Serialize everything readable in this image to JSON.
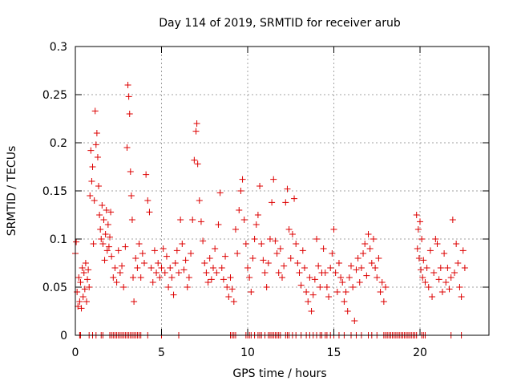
{
  "chart_data": {
    "type": "scatter",
    "title": "Day 114 of 2019, SRMTID for receiver arub",
    "xlabel": "GPS time / hours",
    "ylabel": "SRMTID / TECUs",
    "xlim": [
      0,
      24
    ],
    "ylim": [
      0,
      0.3
    ],
    "x_ticks": [
      0,
      5,
      10,
      15,
      20
    ],
    "x_tick_labels": [
      "0",
      "5",
      "10",
      "15",
      "20"
    ],
    "y_ticks": [
      0,
      0.05,
      0.1,
      0.15,
      0.2,
      0.25,
      0.3
    ],
    "y_tick_labels": [
      "0",
      "0.05",
      "0.1",
      "0.15",
      "0.2",
      "0.25",
      "0.3"
    ],
    "grid": true,
    "marker": "+",
    "marker_color": "#dd0000",
    "series": [
      {
        "name": "SRMTID",
        "points": [
          [
            0.0,
            0.085
          ],
          [
            0.05,
            0.097
          ],
          [
            0.1,
            0.045
          ],
          [
            0.15,
            0.03
          ],
          [
            0.2,
            0.06
          ],
          [
            0.25,
            0.035
          ],
          [
            0.3,
            0.055
          ],
          [
            0.35,
            0.028
          ],
          [
            0.4,
            0.07
          ],
          [
            0.45,
            0.04
          ],
          [
            0.5,
            0.065
          ],
          [
            0.55,
            0.048
          ],
          [
            0.6,
            0.075
          ],
          [
            0.65,
            0.035
          ],
          [
            0.7,
            0.058
          ],
          [
            0.75,
            0.068
          ],
          [
            0.8,
            0.05
          ],
          [
            0.85,
            0.145
          ],
          [
            0.9,
            0.192
          ],
          [
            0.95,
            0.16
          ],
          [
            1.0,
            0.175
          ],
          [
            1.05,
            0.095
          ],
          [
            1.1,
            0.14
          ],
          [
            1.15,
            0.233
          ],
          [
            1.2,
            0.198
          ],
          [
            1.25,
            0.21
          ],
          [
            1.3,
            0.185
          ],
          [
            1.35,
            0.155
          ],
          [
            1.4,
            0.125
          ],
          [
            1.45,
            0.11
          ],
          [
            1.5,
            0.1
          ],
          [
            1.55,
            0.135
          ],
          [
            1.6,
            0.095
          ],
          [
            1.65,
            0.12
          ],
          [
            1.7,
            0.078
          ],
          [
            1.75,
            0.105
          ],
          [
            1.8,
            0.13
          ],
          [
            1.85,
            0.088
          ],
          [
            1.9,
            0.115
          ],
          [
            1.95,
            0.092
          ],
          [
            2.0,
            0.102
          ],
          [
            2.05,
            0.128
          ],
          [
            2.1,
            0.082
          ],
          [
            2.2,
            0.06
          ],
          [
            2.3,
            0.07
          ],
          [
            2.4,
            0.055
          ],
          [
            2.5,
            0.088
          ],
          [
            2.6,
            0.065
          ],
          [
            2.7,
            0.072
          ],
          [
            2.8,
            0.05
          ],
          [
            2.9,
            0.092
          ],
          [
            3.0,
            0.195
          ],
          [
            3.05,
            0.26
          ],
          [
            3.1,
            0.248
          ],
          [
            3.15,
            0.23
          ],
          [
            3.2,
            0.17
          ],
          [
            3.25,
            0.145
          ],
          [
            3.3,
            0.12
          ],
          [
            3.35,
            0.06
          ],
          [
            3.4,
            0.035
          ],
          [
            3.5,
            0.08
          ],
          [
            3.6,
            0.07
          ],
          [
            3.7,
            0.095
          ],
          [
            3.8,
            0.06
          ],
          [
            3.9,
            0.085
          ],
          [
            4.0,
            0.075
          ],
          [
            4.1,
            0.167
          ],
          [
            4.2,
            0.14
          ],
          [
            4.3,
            0.128
          ],
          [
            4.4,
            0.07
          ],
          [
            4.5,
            0.055
          ],
          [
            4.6,
            0.088
          ],
          [
            4.7,
            0.065
          ],
          [
            4.8,
            0.075
          ],
          [
            4.9,
            0.06
          ],
          [
            5.0,
            0.07
          ],
          [
            5.1,
            0.09
          ],
          [
            5.2,
            0.065
          ],
          [
            5.3,
            0.082
          ],
          [
            5.4,
            0.05
          ],
          [
            5.5,
            0.07
          ],
          [
            5.6,
            0.06
          ],
          [
            5.7,
            0.042
          ],
          [
            5.8,
            0.075
          ],
          [
            5.9,
            0.088
          ],
          [
            6.0,
            0.065
          ],
          [
            6.1,
            0.12
          ],
          [
            6.2,
            0.095
          ],
          [
            6.3,
            0.068
          ],
          [
            6.4,
            0.078
          ],
          [
            6.5,
            0.05
          ],
          [
            6.6,
            0.06
          ],
          [
            6.7,
            0.085
          ],
          [
            6.8,
            0.12
          ],
          [
            6.9,
            0.182
          ],
          [
            7.0,
            0.212
          ],
          [
            7.05,
            0.22
          ],
          [
            7.1,
            0.178
          ],
          [
            7.2,
            0.14
          ],
          [
            7.3,
            0.118
          ],
          [
            7.4,
            0.098
          ],
          [
            7.5,
            0.075
          ],
          [
            7.6,
            0.065
          ],
          [
            7.7,
            0.055
          ],
          [
            7.8,
            0.08
          ],
          [
            7.9,
            0.058
          ],
          [
            8.0,
            0.07
          ],
          [
            8.1,
            0.09
          ],
          [
            8.2,
            0.065
          ],
          [
            8.3,
            0.115
          ],
          [
            8.4,
            0.148
          ],
          [
            8.5,
            0.07
          ],
          [
            8.6,
            0.058
          ],
          [
            8.7,
            0.082
          ],
          [
            8.8,
            0.05
          ],
          [
            8.9,
            0.04
          ],
          [
            9.0,
            0.06
          ],
          [
            9.1,
            0.048
          ],
          [
            9.2,
            0.035
          ],
          [
            9.3,
            0.11
          ],
          [
            9.4,
            0.085
          ],
          [
            9.5,
            0.13
          ],
          [
            9.6,
            0.15
          ],
          [
            9.7,
            0.162
          ],
          [
            9.8,
            0.12
          ],
          [
            9.9,
            0.095
          ],
          [
            10.0,
            0.07
          ],
          [
            10.1,
            0.06
          ],
          [
            10.2,
            0.045
          ],
          [
            10.3,
            0.08
          ],
          [
            10.4,
            0.1
          ],
          [
            10.5,
            0.115
          ],
          [
            10.6,
            0.125
          ],
          [
            10.7,
            0.155
          ],
          [
            10.8,
            0.095
          ],
          [
            10.9,
            0.078
          ],
          [
            11.0,
            0.065
          ],
          [
            11.1,
            0.05
          ],
          [
            11.2,
            0.075
          ],
          [
            11.3,
            0.1
          ],
          [
            11.4,
            0.138
          ],
          [
            11.5,
            0.162
          ],
          [
            11.6,
            0.098
          ],
          [
            11.7,
            0.085
          ],
          [
            11.8,
            0.065
          ],
          [
            11.9,
            0.09
          ],
          [
            12.0,
            0.06
          ],
          [
            12.1,
            0.072
          ],
          [
            12.2,
            0.138
          ],
          [
            12.3,
            0.152
          ],
          [
            12.4,
            0.11
          ],
          [
            12.5,
            0.08
          ],
          [
            12.6,
            0.105
          ],
          [
            12.7,
            0.142
          ],
          [
            12.8,
            0.095
          ],
          [
            12.9,
            0.075
          ],
          [
            13.0,
            0.065
          ],
          [
            13.1,
            0.052
          ],
          [
            13.2,
            0.088
          ],
          [
            13.3,
            0.07
          ],
          [
            13.4,
            0.045
          ],
          [
            13.5,
            0.035
          ],
          [
            13.6,
            0.06
          ],
          [
            13.7,
            0.025
          ],
          [
            13.8,
            0.042
          ],
          [
            13.9,
            0.058
          ],
          [
            14.0,
            0.1
          ],
          [
            14.1,
            0.072
          ],
          [
            14.2,
            0.05
          ],
          [
            14.3,
            0.065
          ],
          [
            14.4,
            0.09
          ],
          [
            14.5,
            0.065
          ],
          [
            14.6,
            0.05
          ],
          [
            14.7,
            0.04
          ],
          [
            14.8,
            0.07
          ],
          [
            14.9,
            0.085
          ],
          [
            15.0,
            0.11
          ],
          [
            15.1,
            0.065
          ],
          [
            15.2,
            0.045
          ],
          [
            15.3,
            0.075
          ],
          [
            15.4,
            0.06
          ],
          [
            15.5,
            0.055
          ],
          [
            15.6,
            0.035
          ],
          [
            15.7,
            0.045
          ],
          [
            15.8,
            0.025
          ],
          [
            15.9,
            0.06
          ],
          [
            16.0,
            0.072
          ],
          [
            16.1,
            0.05
          ],
          [
            16.2,
            0.015
          ],
          [
            16.3,
            0.068
          ],
          [
            16.4,
            0.08
          ],
          [
            16.5,
            0.055
          ],
          [
            16.6,
            0.07
          ],
          [
            16.7,
            0.085
          ],
          [
            16.8,
            0.095
          ],
          [
            16.9,
            0.062
          ],
          [
            17.0,
            0.105
          ],
          [
            17.1,
            0.09
          ],
          [
            17.2,
            0.075
          ],
          [
            17.3,
            0.1
          ],
          [
            17.4,
            0.07
          ],
          [
            17.5,
            0.06
          ],
          [
            17.6,
            0.08
          ],
          [
            17.7,
            0.045
          ],
          [
            17.8,
            0.055
          ],
          [
            17.9,
            0.035
          ],
          [
            18.0,
            0.05
          ],
          [
            19.8,
            0.125
          ],
          [
            19.85,
            0.09
          ],
          [
            19.9,
            0.11
          ],
          [
            19.95,
            0.08
          ],
          [
            20.0,
            0.118
          ],
          [
            20.05,
            0.068
          ],
          [
            20.1,
            0.1
          ],
          [
            20.15,
            0.06
          ],
          [
            20.2,
            0.078
          ],
          [
            20.3,
            0.055
          ],
          [
            20.4,
            0.07
          ],
          [
            20.5,
            0.05
          ],
          [
            20.6,
            0.088
          ],
          [
            20.7,
            0.04
          ],
          [
            20.8,
            0.065
          ],
          [
            20.9,
            0.1
          ],
          [
            21.0,
            0.095
          ],
          [
            21.1,
            0.058
          ],
          [
            21.2,
            0.07
          ],
          [
            21.3,
            0.045
          ],
          [
            21.4,
            0.085
          ],
          [
            21.5,
            0.055
          ],
          [
            21.6,
            0.07
          ],
          [
            21.7,
            0.048
          ],
          [
            21.8,
            0.06
          ],
          [
            21.9,
            0.12
          ],
          [
            22.0,
            0.065
          ],
          [
            22.1,
            0.095
          ],
          [
            22.2,
            0.075
          ],
          [
            22.3,
            0.05
          ],
          [
            22.4,
            0.04
          ],
          [
            22.5,
            0.088
          ],
          [
            22.6,
            0.07
          ]
        ]
      }
    ],
    "zero_points_x": [
      0.25,
      0.3,
      0.8,
      1.0,
      1.2,
      1.5,
      1.6,
      2.0,
      2.1,
      2.2,
      2.3,
      2.4,
      2.5,
      2.6,
      2.7,
      2.8,
      2.9,
      3.0,
      3.1,
      3.2,
      3.3,
      3.4,
      3.5,
      3.6,
      3.7,
      3.8,
      4.2,
      5.0,
      6.0,
      9.0,
      9.1,
      9.2,
      9.3,
      9.9,
      10.0,
      10.1,
      10.2,
      10.4,
      10.6,
      10.7,
      10.8,
      11.0,
      11.2,
      11.3,
      11.4,
      11.5,
      11.6,
      11.7,
      11.8,
      11.9,
      12.2,
      12.3,
      12.4,
      12.6,
      12.8,
      13.1,
      13.4,
      13.6,
      13.8,
      14.0,
      14.2,
      14.3,
      14.5,
      14.6,
      14.8,
      15.0,
      15.3,
      15.6,
      16.0,
      16.3,
      16.6,
      17.0,
      17.2,
      17.5,
      17.9,
      18.0,
      18.1,
      18.2,
      18.3,
      18.4,
      18.5,
      18.6,
      18.7,
      18.8,
      18.9,
      19.0,
      19.1,
      19.2,
      19.3,
      19.4,
      19.5,
      19.6,
      19.7,
      19.8,
      20.1,
      20.2,
      20.3,
      21.8,
      22.4
    ]
  }
}
